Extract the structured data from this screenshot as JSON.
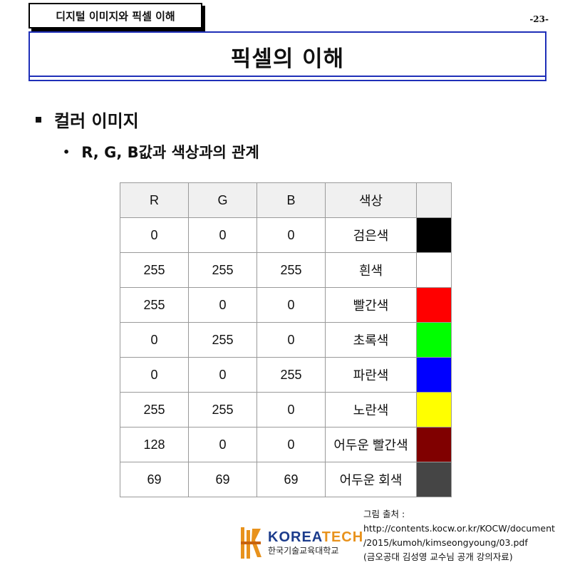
{
  "header": {
    "course_tab": "디지털 이미지와 픽셀 이해",
    "page_number": "-23-",
    "title": "픽셀의 이해"
  },
  "content": {
    "bullet_1": "컬러 이미지",
    "bullet_2": "R, G, B값과 색상과의 관계"
  },
  "table": {
    "headers": [
      "R",
      "G",
      "B",
      "색상",
      ""
    ],
    "rows": [
      {
        "r": "0",
        "g": "0",
        "b": "0",
        "name": "검은색",
        "swatch": "#000000"
      },
      {
        "r": "255",
        "g": "255",
        "b": "255",
        "name": "흰색",
        "swatch": "#ffffff"
      },
      {
        "r": "255",
        "g": "0",
        "b": "0",
        "name": "빨간색",
        "swatch": "#ff0000"
      },
      {
        "r": "0",
        "g": "255",
        "b": "0",
        "name": "초록색",
        "swatch": "#00ff00"
      },
      {
        "r": "0",
        "g": "0",
        "b": "255",
        "name": "파란색",
        "swatch": "#0000ff"
      },
      {
        "r": "255",
        "g": "255",
        "b": "0",
        "name": "노란색",
        "swatch": "#ffff00"
      },
      {
        "r": "128",
        "g": "0",
        "b": "0",
        "name": "어두운 빨간색",
        "swatch": "#800000"
      },
      {
        "r": "69",
        "g": "69",
        "b": "69",
        "name": "어두운 회색",
        "swatch": "#454545"
      }
    ]
  },
  "logo": {
    "name_en_prefix": "KOREA",
    "name_en_suffix": "TECH",
    "name_kr": "한국기술교육대학교",
    "icon": "koreatech-logo-icon"
  },
  "source": {
    "line_1": "그림 출처 :",
    "line_2": "http://contents.kocw.or.kr/KOCW/document",
    "line_3": "/2015/kumoh/kimseongyoung/03.pdf",
    "line_4": "(금오공대 김성영 교수님 공개 강의자료)"
  },
  "colors": {
    "title_border": "#1f2fb8",
    "logo_blue": "#1c3c8c",
    "logo_orange": "#e8921c"
  }
}
